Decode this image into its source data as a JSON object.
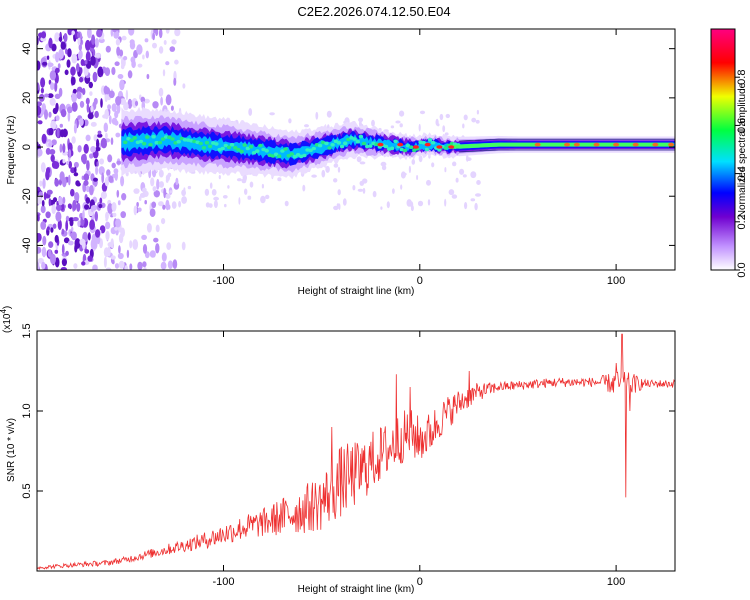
{
  "title": "C2E2.2026.074.12.50.E04",
  "chart_data": [
    {
      "type": "heatmap",
      "name": "spectrogram",
      "xlabel": "Height of straight line (km)",
      "ylabel": "Frequency (Hz)",
      "xlim": [
        -195,
        130
      ],
      "ylim": [
        -50,
        48
      ],
      "xticks": [
        -100,
        0,
        100
      ],
      "xtick_labels": [
        "-100",
        "0",
        "100"
      ],
      "yticks": [
        -40,
        -20,
        0,
        20,
        40
      ],
      "ytick_labels": [
        "-40",
        "-20",
        "0",
        "20",
        "40"
      ],
      "colorbar": {
        "label": "Normalized spectral amplitude",
        "range": [
          0,
          1
        ],
        "ticks": [
          0,
          0.2,
          0.4,
          0.6,
          0.8
        ],
        "tick_labels": [
          "0.0",
          "0.2",
          "0.4",
          "0.6",
          "0.8"
        ],
        "colors": [
          "#ffffff",
          "#c090ff",
          "#7000d0",
          "#0000ff",
          "#00e0ff",
          "#00ff40",
          "#f0ff00",
          "#ff0000",
          "#ff0080"
        ]
      },
      "band_center_hz": [
        [
          -150,
          2
        ],
        [
          -130,
          3
        ],
        [
          -110,
          1
        ],
        [
          -95,
          0
        ],
        [
          -85,
          -1
        ],
        [
          -75,
          -2
        ],
        [
          -65,
          -3
        ],
        [
          -55,
          -1
        ],
        [
          -45,
          1
        ],
        [
          -35,
          3
        ],
        [
          -25,
          2
        ],
        [
          -15,
          1
        ],
        [
          -5,
          0
        ],
        [
          5,
          1
        ],
        [
          15,
          0
        ],
        [
          40,
          1
        ],
        [
          70,
          1
        ],
        [
          100,
          1
        ],
        [
          130,
          1
        ]
      ],
      "band_halfwidth_hz": [
        [
          -150,
          6
        ],
        [
          -100,
          5
        ],
        [
          -60,
          4
        ],
        [
          -30,
          3
        ],
        [
          0,
          2
        ],
        [
          50,
          1.5
        ],
        [
          130,
          1.5
        ]
      ],
      "noise_region_end_km": -150
    },
    {
      "type": "line",
      "name": "snr",
      "xlabel": "Height of straight line (km)",
      "ylabel": "SNR (10 * v/v)",
      "multiplier": "(x10",
      "multiplier_exp": "4",
      "multiplier_close": ")",
      "xlim": [
        -195,
        130
      ],
      "ylim": [
        0,
        15000
      ],
      "xticks": [
        -100,
        0,
        100
      ],
      "xtick_labels": [
        "-100",
        "0",
        "100"
      ],
      "yticks": [
        5000,
        10000,
        15000
      ],
      "ytick_labels": [
        "0.5",
        "1.0",
        "1.5"
      ],
      "color": "#ee3030",
      "series": [
        {
          "name": "SNR",
          "x": [
            -195,
            -180,
            -160,
            -150,
            -140,
            -130,
            -120,
            -110,
            -100,
            -90,
            -80,
            -70,
            -60,
            -50,
            -45,
            -40,
            -35,
            -30,
            -25,
            -20,
            -15,
            -10,
            -5,
            0,
            5,
            10,
            15,
            20,
            25,
            30,
            40,
            50,
            60,
            70,
            80,
            90,
            100,
            110,
            120,
            130
          ],
          "values": [
            200,
            350,
            500,
            700,
            1000,
            1300,
            1600,
            1900,
            2300,
            2700,
            3000,
            3400,
            3800,
            4300,
            5000,
            5600,
            5900,
            6200,
            6800,
            7300,
            7700,
            8300,
            8600,
            8200,
            8600,
            9400,
            10000,
            10500,
            10900,
            11200,
            11500,
            11600,
            11700,
            11800,
            11800,
            11800,
            11700,
            11700,
            11700,
            11700
          ]
        }
      ],
      "spikes": [
        [
          -45,
          9000
        ],
        [
          -35,
          7500
        ],
        [
          -12,
          12300
        ],
        [
          -5,
          11500
        ],
        [
          25,
          12500
        ],
        [
          100,
          13000
        ],
        [
          103,
          14800
        ],
        [
          105,
          4600
        ],
        [
          107,
          10000
        ]
      ],
      "noise_amplitude": [
        [
          -195,
          100
        ],
        [
          -150,
          200
        ],
        [
          -120,
          400
        ],
        [
          -80,
          900
        ],
        [
          -50,
          1800
        ],
        [
          -40,
          2300
        ],
        [
          -30,
          2000
        ],
        [
          -20,
          1800
        ],
        [
          -5,
          1600
        ],
        [
          10,
          1200
        ],
        [
          25,
          700
        ],
        [
          40,
          300
        ],
        [
          90,
          300
        ],
        [
          100,
          800
        ],
        [
          108,
          700
        ],
        [
          115,
          250
        ],
        [
          130,
          250
        ]
      ]
    }
  ]
}
